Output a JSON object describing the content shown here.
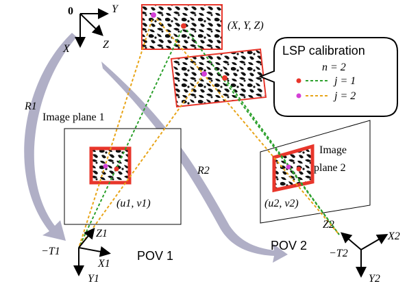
{
  "origin": {
    "label": "0",
    "x_axis": "X",
    "y_axis": "Y",
    "z_axis": "Z"
  },
  "rotations": {
    "r1": "R1",
    "r2": "R2"
  },
  "world_point": "(X, Y, Z)",
  "callout": {
    "title": "LSP calibration",
    "n_text": "n = 2",
    "legend": [
      {
        "label": "j = 1",
        "color": "#2ca02c",
        "marker_color": "#e8362b"
      },
      {
        "label": "j = 2",
        "color": "#e8a417",
        "marker_color": "#d440d6"
      }
    ]
  },
  "plane1": {
    "title": "Image plane 1",
    "coord": "(u1, v1)"
  },
  "plane2": {
    "title_line1": "Image",
    "title_line2": "plane 2",
    "coord": "(u2, v2)"
  },
  "pov1": {
    "label": "POV 1",
    "translation": "−T1",
    "x": "X1",
    "y": "Y1",
    "z": "Z1"
  },
  "pov2": {
    "label": "POV 2",
    "translation": "−T2",
    "x": "X2",
    "y": "Y2",
    "z": "Z2"
  },
  "colors": {
    "frame": "#e8362b",
    "arrow": "#a7a6c0",
    "green": "#2ca02c",
    "orange": "#e8a417"
  }
}
